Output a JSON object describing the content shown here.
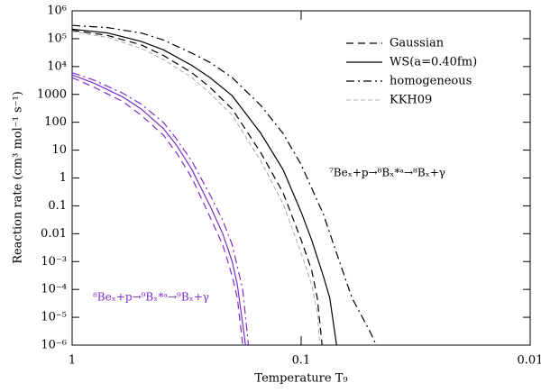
{
  "chart_data": {
    "type": "line",
    "x_label": "Temperature T₉",
    "y_label": "Reaction rate (cm³ mol⁻¹ s⁻¹)",
    "log_x": true,
    "log_y": true,
    "x_reversed": true,
    "xlim": [
      1,
      0.01
    ],
    "xticks": [
      1,
      0.1,
      0.01
    ],
    "ylim": [
      1e-06,
      1000000
    ],
    "yticks": [
      {
        "value": 1000000,
        "label": "10⁶"
      },
      {
        "value": 100000,
        "label": "10⁵"
      },
      {
        "value": 10000,
        "label": "10⁴"
      },
      1000,
      100,
      10,
      1,
      0.1,
      0.01,
      {
        "value": 0.001,
        "label": "10⁻³"
      },
      {
        "value": 0.0001,
        "label": "10⁻⁴"
      },
      {
        "value": 1e-05,
        "label": "10⁻⁵"
      },
      {
        "value": 1e-06,
        "label": "10⁻⁶"
      }
    ],
    "legend_position": "upper right",
    "annotations": [
      {
        "text": "⁷Beₓ+p→⁸Bₓ*ᵃ→⁸Bₓ+γ",
        "color": "#000000"
      },
      {
        "text": "⁸Beₓ+p→⁹Bₓ*ᵃ→⁹Bₓ+γ",
        "color": "#7b2fc9"
      }
    ],
    "series": [
      {
        "name": "Gaussian",
        "color": "#000000",
        "style": "dashed",
        "x": [
          1,
          0.7,
          0.5,
          0.4,
          0.3,
          0.25,
          0.2,
          0.15,
          0.12,
          0.1,
          0.09,
          0.085,
          0.081
        ],
        "values": [
          200000,
          130000,
          60000,
          25000,
          6000,
          1800,
          300,
          8,
          0.3,
          0.006,
          0.0005,
          5e-05,
          1e-06
        ]
      },
      {
        "name": "WS(a=0.40fm)",
        "color": "#000000",
        "style": "solid",
        "x": [
          1,
          0.7,
          0.5,
          0.4,
          0.3,
          0.25,
          0.2,
          0.15,
          0.12,
          0.1,
          0.09,
          0.08,
          0.075,
          0.07
        ],
        "values": [
          220000,
          160000,
          80000,
          40000,
          11000,
          4000,
          900,
          40,
          2,
          0.06,
          0.006,
          0.0003,
          5e-05,
          1e-06
        ]
      },
      {
        "name": "homogeneous",
        "color": "#000000",
        "style": "dashdot",
        "x": [
          1,
          0.7,
          0.5,
          0.4,
          0.3,
          0.25,
          0.2,
          0.15,
          0.12,
          0.1,
          0.08,
          0.07,
          0.06,
          0.05,
          0.047
        ],
        "values": [
          300000,
          250000,
          160000,
          90000,
          30000,
          14000,
          4000,
          400,
          40,
          3,
          0.05,
          0.002,
          5e-05,
          3e-06,
          1e-06
        ]
      },
      {
        "name": "KKH09",
        "color": "#999999",
        "style": "thin-dashed",
        "x": [
          1,
          0.7,
          0.5,
          0.4,
          0.3,
          0.25,
          0.2,
          0.15,
          0.12,
          0.1,
          0.09,
          0.085,
          0.083
        ],
        "values": [
          180000,
          110000,
          45000,
          18000,
          4000,
          1100,
          180,
          4,
          0.12,
          0.002,
          0.00015,
          1.5e-05,
          1e-06
        ]
      },
      {
        "color": "#7b2fc9",
        "style": "dashed",
        "x": [
          1,
          0.8,
          0.6,
          0.5,
          0.4,
          0.35,
          0.3,
          0.25,
          0.22,
          0.2,
          0.19,
          0.18
        ],
        "values": [
          4000,
          1800,
          550,
          180,
          35,
          8,
          1,
          0.04,
          0.004,
          0.0003,
          5e-05,
          1e-06
        ]
      },
      {
        "color": "#7b2fc9",
        "style": "solid",
        "x": [
          1,
          0.8,
          0.6,
          0.5,
          0.4,
          0.35,
          0.3,
          0.25,
          0.22,
          0.2,
          0.19,
          0.175
        ],
        "values": [
          5000,
          2500,
          800,
          300,
          60,
          15,
          2,
          0.1,
          0.01,
          0.001,
          0.00015,
          1e-06
        ]
      },
      {
        "color": "#7b2fc9",
        "style": "dashdot",
        "x": [
          1,
          0.8,
          0.6,
          0.5,
          0.4,
          0.35,
          0.3,
          0.25,
          0.22,
          0.2,
          0.18,
          0.17
        ],
        "values": [
          6000,
          3200,
          1100,
          450,
          100,
          25,
          4,
          0.25,
          0.03,
          0.004,
          0.0001,
          1e-06
        ]
      }
    ]
  }
}
